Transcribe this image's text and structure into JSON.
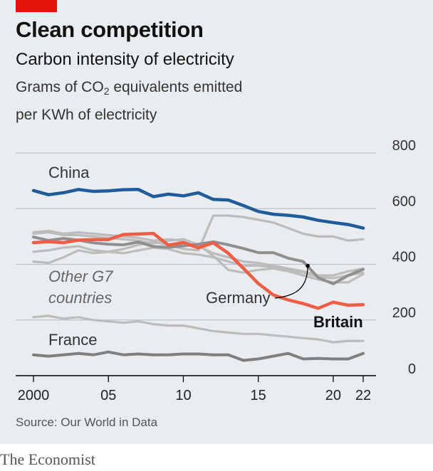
{
  "header": {
    "title": "Clean competition",
    "subtitle": "Carbon intensity of electricity",
    "note_line1_pre": "Grams of CO",
    "note_sub": "2",
    "note_line1_post": " equivalents emitted",
    "note_line2": "per KWh of electricity"
  },
  "footer": {
    "source": "Source: Our World in Data",
    "brand": "The Economist"
  },
  "colors": {
    "background": "#e9edf0",
    "accent_red": "#e3120b",
    "china": "#1f5c99",
    "britain": "#f05d46",
    "germany": "#8f8f8f",
    "other": "#bcbcbc",
    "france": "#7f7f7f",
    "gridline": "#b8c2cc",
    "axis": "#000000"
  },
  "chart_data": {
    "type": "line",
    "title": "Carbon intensity of electricity",
    "ylabel": "Grams of CO2 equivalents emitted per KWh of electricity",
    "xlabel": "",
    "x": [
      2000,
      2001,
      2002,
      2003,
      2004,
      2005,
      2006,
      2007,
      2008,
      2009,
      2010,
      2011,
      2012,
      2013,
      2014,
      2015,
      2016,
      2017,
      2018,
      2019,
      2020,
      2021,
      2022
    ],
    "xlim": [
      2000,
      2022
    ],
    "ylim": [
      0,
      800
    ],
    "y_ticks": [
      "800",
      "600",
      "400",
      "200",
      "0"
    ],
    "y_tick_values": [
      800,
      600,
      400,
      200,
      0
    ],
    "x_ticks": [
      "2000",
      "05",
      "10",
      "15",
      "20",
      "22"
    ],
    "x_tick_values": [
      2000,
      2005,
      2010,
      2015,
      2020,
      2022
    ],
    "grid": true,
    "annotations": {
      "china": "China",
      "other_line1": "Other G7",
      "other_line2": "countries",
      "germany": "Germany",
      "britain": "Britain",
      "france": "France"
    },
    "series": [
      {
        "name": "China",
        "role": "china",
        "values": [
          665,
          650,
          657,
          669,
          662,
          664,
          668,
          669,
          643,
          652,
          646,
          657,
          633,
          631,
          611,
          590,
          580,
          576,
          570,
          558,
          550,
          543,
          530
        ]
      },
      {
        "name": "Britain",
        "role": "britain",
        "values": [
          478,
          481,
          478,
          487,
          489,
          489,
          507,
          509,
          511,
          469,
          478,
          459,
          477,
          440,
          386,
          331,
          290,
          272,
          259,
          242,
          264,
          253,
          255
        ]
      },
      {
        "name": "Germany",
        "role": "germany",
        "values": [
          498,
          486,
          493,
          487,
          477,
          472,
          470,
          480,
          464,
          461,
          466,
          472,
          481,
          470,
          457,
          442,
          442,
          422,
          410,
          352,
          330,
          360,
          382
        ]
      },
      {
        "name": "",
        "role": "other",
        "values": [
          410,
          405,
          425,
          450,
          440,
          445,
          455,
          470,
          480,
          470,
          455,
          450,
          575,
          575,
          570,
          560,
          550,
          530,
          510,
          500,
          500,
          485,
          490
        ]
      },
      {
        "name": "",
        "role": "other",
        "values": [
          510,
          515,
          505,
          505,
          500,
          495,
          490,
          485,
          475,
          485,
          490,
          470,
          430,
          380,
          370,
          380,
          385,
          375,
          360,
          345,
          335,
          335,
          365
        ]
      },
      {
        "name": "",
        "role": "other",
        "values": [
          515,
          520,
          510,
          515,
          510,
          505,
          500,
          495,
          485,
          490,
          485,
          465,
          440,
          425,
          410,
          405,
          395,
          385,
          375,
          360,
          360,
          375,
          385
        ]
      },
      {
        "name": "",
        "role": "other",
        "values": [
          445,
          450,
          460,
          465,
          450,
          445,
          440,
          450,
          460,
          455,
          440,
          435,
          425,
          410,
          395,
          395,
          390,
          380,
          370,
          355,
          350,
          360,
          370
        ]
      },
      {
        "name": "",
        "role": "other",
        "values": [
          210,
          215,
          205,
          210,
          200,
          195,
          190,
          195,
          185,
          180,
          180,
          170,
          160,
          155,
          150,
          150,
          145,
          140,
          135,
          130,
          120,
          125,
          125
        ]
      },
      {
        "name": "France",
        "role": "france",
        "values": [
          75,
          70,
          75,
          80,
          75,
          85,
          75,
          78,
          75,
          75,
          78,
          78,
          75,
          75,
          55,
          60,
          70,
          80,
          60,
          62,
          60,
          60,
          80
        ]
      }
    ]
  }
}
